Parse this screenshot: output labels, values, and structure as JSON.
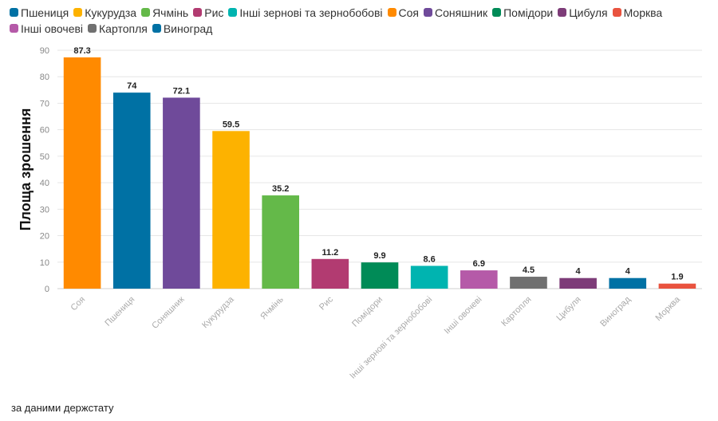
{
  "chart_data": {
    "type": "bar",
    "title": "",
    "ylabel": "Площа зрошення",
    "xlabel": "",
    "ylim": [
      0,
      90
    ],
    "yticks": [
      0,
      10,
      20,
      30,
      40,
      50,
      60,
      70,
      80,
      90
    ],
    "grid": true,
    "legend": [
      {
        "name": "Пшениця",
        "color": "#0071a4"
      },
      {
        "name": "Кукурудза",
        "color": "#fdb200"
      },
      {
        "name": "Ячмінь",
        "color": "#64b949"
      },
      {
        "name": "Рис",
        "color": "#b23b71"
      },
      {
        "name": "Інші зернові та зернобобові",
        "color": "#00b4b0"
      },
      {
        "name": "Соя",
        "color": "#ff8a00"
      },
      {
        "name": "Соняшник",
        "color": "#6f4a9a"
      },
      {
        "name": "Помідори",
        "color": "#008b57"
      },
      {
        "name": "Цибуля",
        "color": "#7d3c78"
      },
      {
        "name": "Морква",
        "color": "#e9533f"
      },
      {
        "name": "Інші овочеві",
        "color": "#b55aa8"
      },
      {
        "name": "Картопля",
        "color": "#707070"
      },
      {
        "name": "Виноград",
        "color": "#0071a4"
      }
    ],
    "categories": [
      "Соя",
      "Пшениця",
      "Соняшник",
      "Кукурудза",
      "Ячмінь",
      "Рис",
      "Помідори",
      "Інші зернові та зернобобові",
      "Інші овочеві",
      "Картопля",
      "Цибуля",
      "Виноград",
      "Морква"
    ],
    "values": [
      87.3,
      74,
      72.1,
      59.5,
      35.2,
      11.2,
      9.9,
      8.6,
      6.9,
      4.5,
      4,
      4,
      1.9
    ],
    "value_labels": [
      "87.3",
      "74",
      "72.1",
      "59.5",
      "35.2",
      "11.2",
      "9.9",
      "8.6",
      "6.9",
      "4.5",
      "4",
      "4",
      "1.9"
    ],
    "colors": [
      "#ff8a00",
      "#0071a4",
      "#6f4a9a",
      "#fdb200",
      "#64b949",
      "#b23b71",
      "#008b57",
      "#00b4b0",
      "#b55aa8",
      "#707070",
      "#7d3c78",
      "#0071a4",
      "#e9533f"
    ]
  },
  "source_note": "за даними держстату"
}
